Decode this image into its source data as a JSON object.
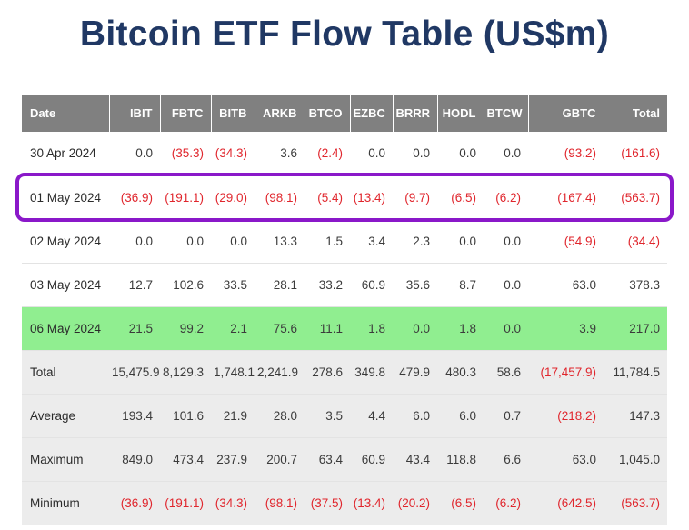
{
  "title": "Bitcoin ETF Flow Table (US$m)",
  "colors": {
    "title_blue": "#203864",
    "header_gray": "#808080",
    "summary_gray": "#ececec",
    "row_green": "#90ee90",
    "negative_red": "#e0262d",
    "highlight_purple": "#8a18c9"
  },
  "chart_data": {
    "type": "table",
    "title": "Bitcoin ETF Flow Table (US$m)",
    "columns": [
      "Date",
      "IBIT",
      "FBTC",
      "BITB",
      "ARKB",
      "BTCO",
      "EZBC",
      "BRRR",
      "HODL",
      "BTCW",
      "GBTC",
      "Total"
    ],
    "rows": [
      {
        "label": "30 Apr 2024",
        "type": "data",
        "values": [
          "0.0",
          "(35.3)",
          "(34.3)",
          "3.6",
          "(2.4)",
          "0.0",
          "0.0",
          "0.0",
          "0.0",
          "(93.2)",
          "(161.6)"
        ]
      },
      {
        "label": "01 May 2024",
        "type": "data",
        "values": [
          "(36.9)",
          "(191.1)",
          "(29.0)",
          "(98.1)",
          "(5.4)",
          "(13.4)",
          "(9.7)",
          "(6.5)",
          "(6.2)",
          "(167.4)",
          "(563.7)"
        ]
      },
      {
        "label": "02 May 2024",
        "type": "data",
        "values": [
          "0.0",
          "0.0",
          "0.0",
          "13.3",
          "1.5",
          "3.4",
          "2.3",
          "0.0",
          "0.0",
          "(54.9)",
          "(34.4)"
        ]
      },
      {
        "label": "03 May 2024",
        "type": "data",
        "values": [
          "12.7",
          "102.6",
          "33.5",
          "28.1",
          "33.2",
          "60.9",
          "35.6",
          "8.7",
          "0.0",
          "63.0",
          "378.3"
        ]
      },
      {
        "label": "06 May 2024",
        "type": "green",
        "values": [
          "21.5",
          "99.2",
          "2.1",
          "75.6",
          "11.1",
          "1.8",
          "0.0",
          "1.8",
          "0.0",
          "3.9",
          "217.0"
        ]
      },
      {
        "label": "Total",
        "type": "summary",
        "values": [
          "15,475.9",
          "8,129.3",
          "1,748.1",
          "2,241.9",
          "278.6",
          "349.8",
          "479.9",
          "480.3",
          "58.6",
          "(17,457.9)",
          "11,784.5"
        ]
      },
      {
        "label": "Average",
        "type": "summary",
        "values": [
          "193.4",
          "101.6",
          "21.9",
          "28.0",
          "3.5",
          "4.4",
          "6.0",
          "6.0",
          "0.7",
          "(218.2)",
          "147.3"
        ]
      },
      {
        "label": "Maximum",
        "type": "summary",
        "values": [
          "849.0",
          "473.4",
          "237.9",
          "200.7",
          "63.4",
          "60.9",
          "43.4",
          "118.8",
          "6.6",
          "63.0",
          "1,045.0"
        ]
      },
      {
        "label": "Minimum",
        "type": "summary",
        "values": [
          "(36.9)",
          "(191.1)",
          "(34.3)",
          "(98.1)",
          "(37.5)",
          "(13.4)",
          "(20.2)",
          "(6.5)",
          "(6.2)",
          "(642.5)",
          "(563.7)"
        ]
      }
    ],
    "annotations": {
      "purple_box_row": "01 May 2024",
      "green_highlight_row": "06 May 2024",
      "negative_format": "parentheses shown in red"
    }
  }
}
